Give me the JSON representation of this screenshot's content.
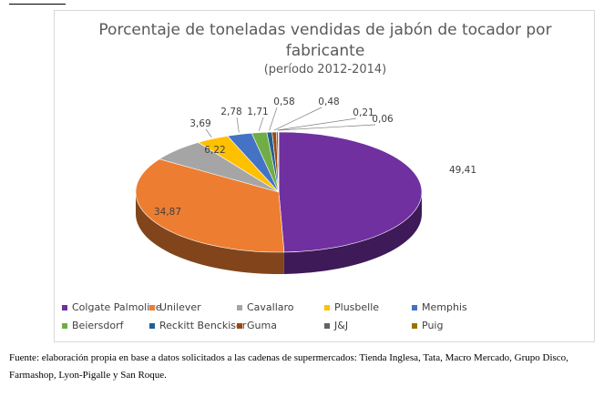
{
  "chart_data": {
    "type": "pie",
    "title": "Porcentaje de toneladas vendidas de jabón de tocador  por",
    "title_line2": "fabricante",
    "subtitle": "(período 2012-2014)",
    "three_d": true,
    "legend_position": "bottom",
    "slices": [
      {
        "name": "Colgate Palmolive",
        "value": 49.41,
        "label": "49,41",
        "color": "#7030a0"
      },
      {
        "name": "Unilever",
        "value": 34.87,
        "label": "34,87",
        "color": "#ed7d31"
      },
      {
        "name": "Cavallaro",
        "value": 6.22,
        "label": "6,22",
        "color": "#a5a5a5"
      },
      {
        "name": "Plusbelle",
        "value": 3.69,
        "label": "3,69",
        "color": "#ffc000"
      },
      {
        "name": "Memphis",
        "value": 2.78,
        "label": "2,78",
        "color": "#4472c4"
      },
      {
        "name": "Beiersdorf",
        "value": 1.71,
        "label": "1,71",
        "color": "#70ad47"
      },
      {
        "name": "Reckitt Benckiser",
        "value": 0.58,
        "label": "0,58",
        "color": "#255e91"
      },
      {
        "name": "Guma",
        "value": 0.48,
        "label": "0,48",
        "color": "#9e480e"
      },
      {
        "name": "J&J",
        "value": 0.21,
        "label": "0,21",
        "color": "#636363"
      },
      {
        "name": "Puig",
        "value": 0.06,
        "label": "0,06",
        "color": "#997300"
      }
    ]
  },
  "source": "Fuente: elaboración propia en base a datos solicitados a las cadenas de supermercados: Tienda Inglesa, Tata, Macro Mercado, Grupo Disco, Farmashop, Lyon-Pigalle y San Roque."
}
